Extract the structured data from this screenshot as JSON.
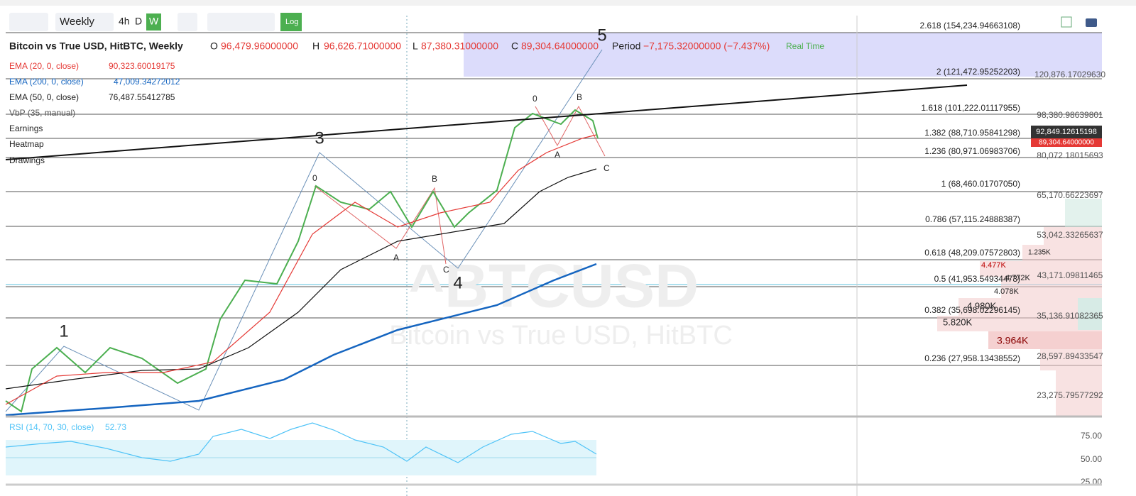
{
  "toolbar": {
    "interval": "Weekly",
    "buttons": [
      "4h",
      "D",
      "W"
    ],
    "log": "Log"
  },
  "legend": {
    "symbol": "Bitcoin vs True USD, HitBTC, Weekly",
    "ohlc": [
      {
        "label": "O",
        "value": "96,479.96000000"
      },
      {
        "label": "H",
        "value": "96,626.71000000"
      },
      {
        "label": "L",
        "value": "87,380.31000000"
      },
      {
        "label": "C",
        "value": "89,304.64000000"
      }
    ],
    "period": {
      "label": "Period",
      "value": "−7,175.32000000 (−7.437%)"
    },
    "realtime": "Real Time",
    "indicators": [
      {
        "label": "EMA (20, 0, close)",
        "value": "90,323.60019175"
      },
      {
        "label": "EMA (200, 0, close)",
        "value": "47,009.34272012"
      },
      {
        "label": "EMA (50, 0, close)",
        "value": "76,487.55412785"
      },
      {
        "label": "VbP (35, manual)"
      },
      {
        "label": "Earnings"
      },
      {
        "label": "Heatmap"
      },
      {
        "label": "Drawings"
      }
    ]
  },
  "fib_levels": [
    "2.618 (154,234.94663108)",
    "2 (121,472.95252203)",
    "1.618 (101,222.01117955)",
    "1.382 (88,710.95841298)",
    "1.236 (80,971.06983706)",
    "1 (68,460.01707050)",
    "0.786 (57,115.24888387)",
    "0.618 (48,209.07572803)",
    "0.5 (41,953.54934473)",
    "0.382 (35,698.02296145)",
    "0.236 (27,958.13438552)"
  ],
  "price_axis": [
    "120,876.17029630",
    "98,380.98639801",
    "80,072.18015693",
    "65,170.66223697",
    "53,042.33265637",
    "43,171.09811465",
    "35,136.91082365",
    "28,597.89433547",
    "23,275.79577292"
  ],
  "badges": [
    "92,849.12615198",
    "89,304.64000000"
  ],
  "volume_profile": [
    "1.235K",
    "4.477K",
    "4.772K",
    "4.078K",
    "4.980K",
    "5.820K",
    "3.964K"
  ],
  "waves": [
    "1",
    "3",
    "4",
    "5"
  ],
  "abc": [
    "0",
    "A",
    "B",
    "C",
    "0",
    "A",
    "B",
    "C"
  ],
  "watermark": {
    "ticker": "^BTCUSD",
    "name": "Bitcoin vs True USD, HitBTC"
  },
  "rsi": {
    "label": "RSI (14, 70, 30, close)",
    "value": "52.73",
    "axis": [
      "75.00",
      "50.00",
      "25.00"
    ]
  }
}
